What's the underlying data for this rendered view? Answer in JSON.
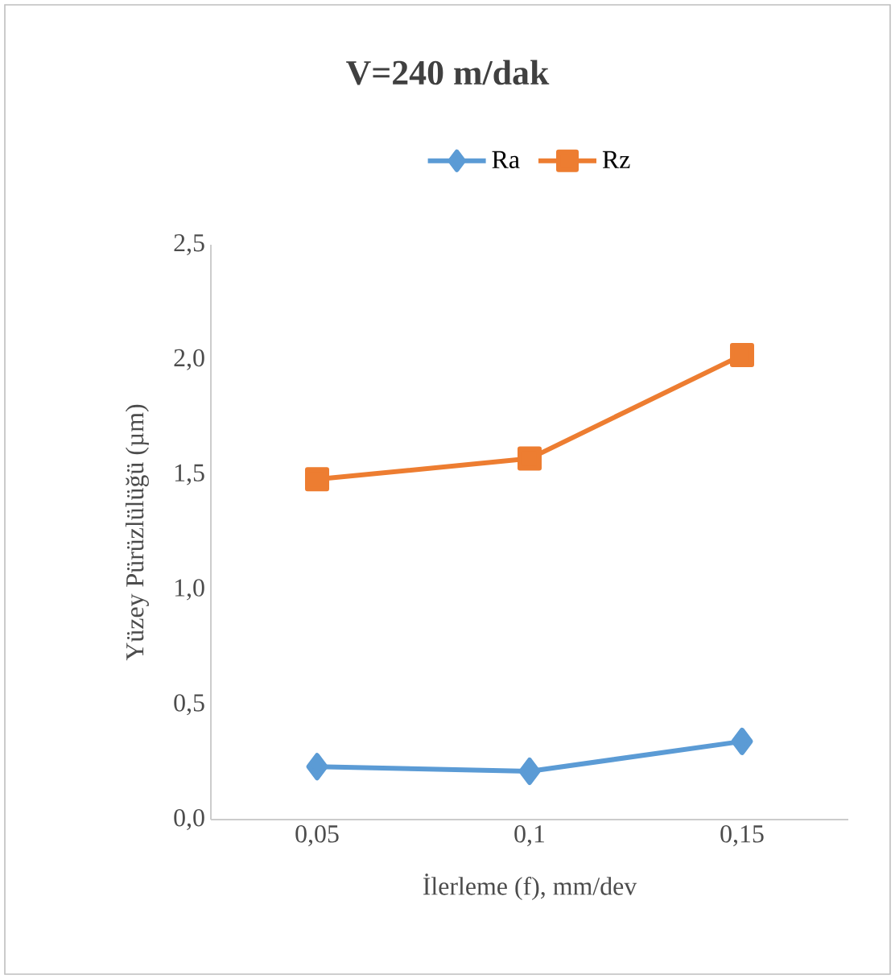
{
  "chart_data": {
    "type": "line",
    "title": "V=240 m/dak",
    "xlabel": "İlerleme (f), mm/dev",
    "ylabel": "Yüzey Pürüzlülüğü (µm)",
    "categories": [
      "0,05",
      "0,1",
      "0,15"
    ],
    "series": [
      {
        "name": "Ra",
        "color": "#5b9bd5",
        "marker": "diamond",
        "values": [
          0.23,
          0.21,
          0.34
        ]
      },
      {
        "name": "Rz",
        "color": "#ed7d31",
        "marker": "square",
        "values": [
          1.48,
          1.57,
          2.02
        ]
      }
    ],
    "ylim": [
      0,
      2.5
    ],
    "yticks": [
      {
        "value": 0,
        "label": "0,0"
      },
      {
        "value": 0.5,
        "label": "0,5"
      },
      {
        "value": 1,
        "label": "1,0"
      },
      {
        "value": 1.5,
        "label": "1,5"
      },
      {
        "value": 2,
        "label": "2,0"
      },
      {
        "value": 2.5,
        "label": "2,5"
      }
    ],
    "legend": "top"
  }
}
